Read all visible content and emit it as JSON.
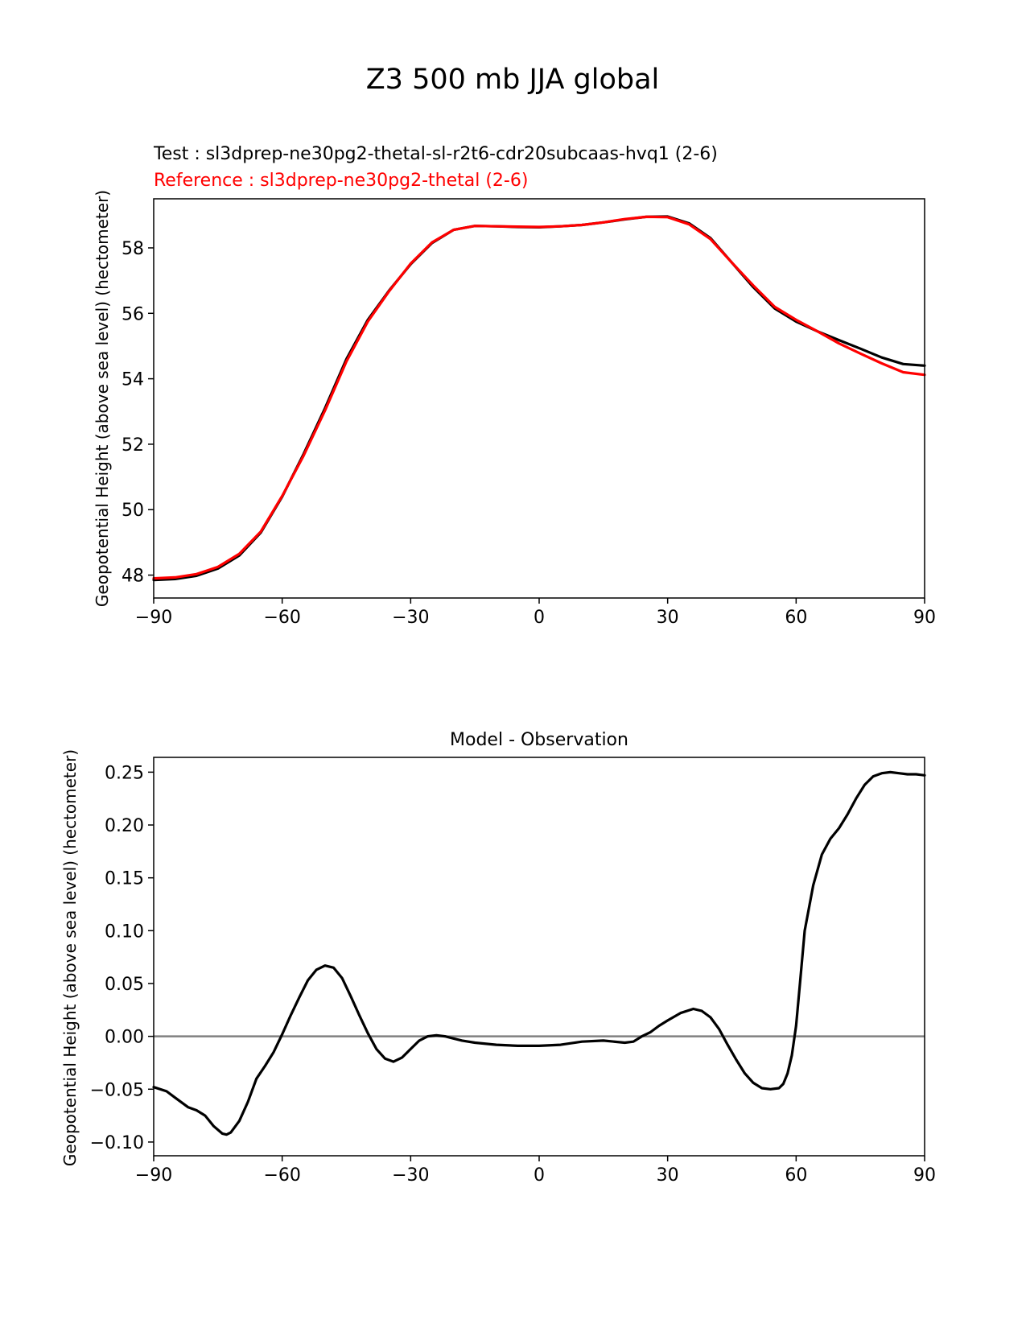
{
  "figure_title": "Z3 500 mb JJA global",
  "chart_data": [
    {
      "type": "line",
      "test_label": "Test : sl3dprep-ne30pg2-thetal-sl-r2t6-cdr20subcaas-hvq1 (2-6)",
      "reference_label": "Reference : sl3dprep-ne30pg2-thetal (2-6)",
      "title": "",
      "xlabel": "",
      "ylabel": "Geopotential Height (above sea level) (hectometer)",
      "xlim": [
        -90,
        90
      ],
      "ylim": [
        47.3,
        59.5
      ],
      "xticks": [
        -90,
        -60,
        -30,
        0,
        30,
        60,
        90
      ],
      "xtick_labels": [
        "−90",
        "−60",
        "−30",
        "0",
        "30",
        "60",
        "90"
      ],
      "yticks": [
        48,
        50,
        52,
        54,
        56,
        58
      ],
      "ytick_labels": [
        "48",
        "50",
        "52",
        "54",
        "56",
        "58"
      ],
      "x": [
        -90,
        -85,
        -80,
        -75,
        -70,
        -65,
        -60,
        -55,
        -50,
        -45,
        -40,
        -35,
        -30,
        -25,
        -20,
        -15,
        -10,
        -5,
        0,
        5,
        10,
        15,
        20,
        25,
        30,
        35,
        40,
        45,
        50,
        55,
        60,
        65,
        70,
        75,
        80,
        85,
        90
      ],
      "series": [
        {
          "name": "Test",
          "color": "#000000",
          "values": [
            47.85,
            47.88,
            47.98,
            48.2,
            48.6,
            49.3,
            50.4,
            51.7,
            53.1,
            54.6,
            55.8,
            56.7,
            57.5,
            58.15,
            58.55,
            58.67,
            58.66,
            58.64,
            58.63,
            58.66,
            58.7,
            58.78,
            58.87,
            58.95,
            58.96,
            58.75,
            58.3,
            57.55,
            56.8,
            56.15,
            55.75,
            55.45,
            55.18,
            54.92,
            54.65,
            54.45,
            54.4
          ]
        },
        {
          "name": "Reference",
          "color": "#ff0000",
          "values": [
            47.9,
            47.93,
            48.03,
            48.25,
            48.65,
            49.33,
            50.42,
            51.65,
            53.03,
            54.53,
            55.75,
            56.68,
            57.52,
            58.17,
            58.55,
            58.67,
            58.66,
            58.65,
            58.64,
            58.66,
            58.7,
            58.78,
            58.88,
            58.95,
            58.94,
            58.72,
            58.27,
            57.55,
            56.85,
            56.2,
            55.8,
            55.45,
            55.08,
            54.77,
            54.47,
            54.2,
            54.12
          ]
        }
      ]
    },
    {
      "type": "line",
      "title": "Model - Observation",
      "xlabel": "",
      "ylabel": "Geopotential Height (above sea level) (hectometer)",
      "xlim": [
        -90,
        90
      ],
      "ylim": [
        -0.113,
        0.264
      ],
      "xticks": [
        -90,
        -60,
        -30,
        0,
        30,
        60,
        90
      ],
      "xtick_labels": [
        "−90",
        "−60",
        "−30",
        "0",
        "30",
        "60",
        "90"
      ],
      "yticks": [
        -0.1,
        -0.05,
        0.0,
        0.05,
        0.1,
        0.15,
        0.2,
        0.25
      ],
      "ytick_labels": [
        "−0.10",
        "−0.05",
        "0.00",
        "0.05",
        "0.10",
        "0.15",
        "0.20",
        "0.25"
      ],
      "zero_line": 0.0,
      "x": [
        -90,
        -87,
        -85,
        -82,
        -80,
        -78,
        -76,
        -74,
        -73,
        -72,
        -70,
        -68,
        -66,
        -64,
        -62,
        -60,
        -58,
        -56,
        -54,
        -52,
        -50,
        -48,
        -46,
        -44,
        -42,
        -40,
        -38,
        -36,
        -34,
        -32,
        -30,
        -28,
        -26,
        -24,
        -22,
        -20,
        -18,
        -15,
        -10,
        -5,
        0,
        5,
        10,
        15,
        20,
        22,
        24,
        26,
        28,
        30,
        33,
        36,
        38,
        40,
        42,
        44,
        46,
        48,
        50,
        52,
        54,
        56,
        57,
        58,
        59,
        60,
        61,
        62,
        64,
        66,
        68,
        70,
        72,
        74,
        76,
        78,
        80,
        82,
        84,
        86,
        88,
        90
      ],
      "series": [
        {
          "name": "Model - Observation",
          "color": "#000000",
          "values": [
            -0.048,
            -0.052,
            -0.058,
            -0.067,
            -0.07,
            -0.075,
            -0.085,
            -0.092,
            -0.093,
            -0.091,
            -0.08,
            -0.062,
            -0.04,
            -0.028,
            -0.015,
            0.002,
            0.02,
            0.037,
            0.053,
            0.063,
            0.067,
            0.065,
            0.055,
            0.038,
            0.02,
            0.003,
            -0.012,
            -0.021,
            -0.024,
            -0.02,
            -0.012,
            -0.004,
            0.0,
            0.001,
            0.0,
            -0.002,
            -0.004,
            -0.006,
            -0.008,
            -0.009,
            -0.009,
            -0.008,
            -0.005,
            -0.004,
            -0.006,
            -0.005,
            0.0,
            0.004,
            0.01,
            0.015,
            0.022,
            0.026,
            0.024,
            0.018,
            0.007,
            -0.008,
            -0.022,
            -0.035,
            -0.044,
            -0.049,
            -0.05,
            -0.049,
            -0.045,
            -0.035,
            -0.018,
            0.01,
            0.055,
            0.1,
            0.143,
            0.172,
            0.187,
            0.197,
            0.21,
            0.225,
            0.238,
            0.246,
            0.249,
            0.25,
            0.249,
            0.248,
            0.248,
            0.247
          ]
        }
      ]
    }
  ]
}
